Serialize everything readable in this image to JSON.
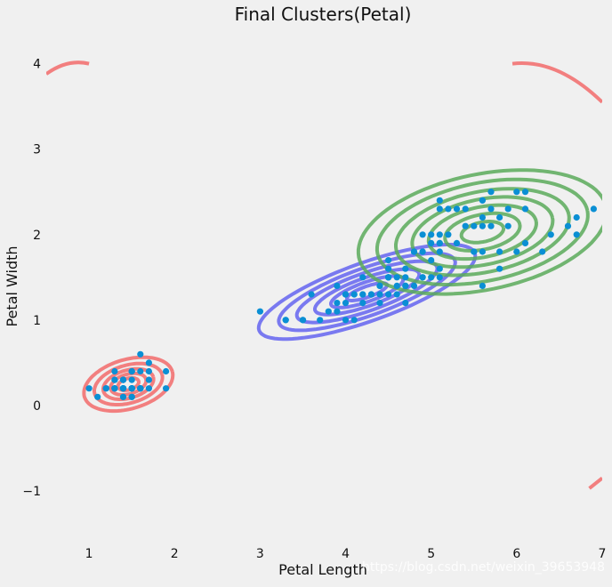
{
  "chart_data": {
    "type": "scatter",
    "title": "Final Clusters(Petal)",
    "xlabel": "Petal Length",
    "ylabel": "Petal Width",
    "xlim": [
      0.5,
      7.0
    ],
    "ylim": [
      -1.5,
      4.35
    ],
    "x_ticks": [
      1,
      2,
      3,
      4,
      5,
      6,
      7
    ],
    "y_ticks": [
      -1,
      0,
      1,
      2,
      3,
      4
    ],
    "grid": false,
    "point_color": "#0a8fd4",
    "points": [
      [
        1.4,
        0.2
      ],
      [
        1.4,
        0.2
      ],
      [
        1.3,
        0.2
      ],
      [
        1.5,
        0.2
      ],
      [
        1.4,
        0.2
      ],
      [
        1.7,
        0.4
      ],
      [
        1.4,
        0.3
      ],
      [
        1.5,
        0.2
      ],
      [
        1.4,
        0.2
      ],
      [
        1.5,
        0.1
      ],
      [
        1.5,
        0.2
      ],
      [
        1.6,
        0.2
      ],
      [
        1.4,
        0.1
      ],
      [
        1.1,
        0.1
      ],
      [
        1.2,
        0.2
      ],
      [
        1.5,
        0.4
      ],
      [
        1.3,
        0.4
      ],
      [
        1.4,
        0.3
      ],
      [
        1.7,
        0.3
      ],
      [
        1.5,
        0.3
      ],
      [
        1.7,
        0.2
      ],
      [
        1.5,
        0.4
      ],
      [
        1.0,
        0.2
      ],
      [
        1.7,
        0.5
      ],
      [
        1.9,
        0.2
      ],
      [
        1.6,
        0.2
      ],
      [
        1.6,
        0.4
      ],
      [
        1.5,
        0.2
      ],
      [
        1.4,
        0.2
      ],
      [
        1.6,
        0.2
      ],
      [
        1.6,
        0.2
      ],
      [
        1.5,
        0.4
      ],
      [
        1.5,
        0.1
      ],
      [
        1.4,
        0.2
      ],
      [
        1.5,
        0.2
      ],
      [
        1.2,
        0.2
      ],
      [
        1.3,
        0.2
      ],
      [
        1.4,
        0.1
      ],
      [
        1.3,
        0.2
      ],
      [
        1.5,
        0.2
      ],
      [
        1.3,
        0.3
      ],
      [
        1.3,
        0.3
      ],
      [
        1.3,
        0.2
      ],
      [
        1.6,
        0.6
      ],
      [
        1.9,
        0.4
      ],
      [
        1.4,
        0.3
      ],
      [
        1.6,
        0.2
      ],
      [
        1.4,
        0.2
      ],
      [
        1.5,
        0.2
      ],
      [
        1.4,
        0.2
      ],
      [
        4.7,
        1.4
      ],
      [
        4.5,
        1.5
      ],
      [
        4.9,
        1.5
      ],
      [
        4.0,
        1.3
      ],
      [
        4.6,
        1.5
      ],
      [
        4.5,
        1.3
      ],
      [
        4.7,
        1.6
      ],
      [
        3.3,
        1.0
      ],
      [
        4.6,
        1.3
      ],
      [
        3.9,
        1.4
      ],
      [
        3.5,
        1.0
      ],
      [
        4.2,
        1.5
      ],
      [
        4.0,
        1.0
      ],
      [
        4.7,
        1.4
      ],
      [
        3.6,
        1.3
      ],
      [
        4.4,
        1.4
      ],
      [
        4.5,
        1.5
      ],
      [
        4.1,
        1.0
      ],
      [
        4.5,
        1.5
      ],
      [
        3.9,
        1.1
      ],
      [
        4.8,
        1.8
      ],
      [
        4.0,
        1.3
      ],
      [
        4.9,
        1.5
      ],
      [
        4.7,
        1.2
      ],
      [
        4.3,
        1.3
      ],
      [
        4.4,
        1.4
      ],
      [
        4.8,
        1.4
      ],
      [
        5.0,
        1.7
      ],
      [
        4.5,
        1.5
      ],
      [
        3.5,
        1.0
      ],
      [
        3.8,
        1.1
      ],
      [
        3.7,
        1.0
      ],
      [
        3.9,
        1.2
      ],
      [
        5.1,
        1.6
      ],
      [
        4.5,
        1.5
      ],
      [
        4.5,
        1.6
      ],
      [
        4.7,
        1.5
      ],
      [
        4.4,
        1.3
      ],
      [
        4.1,
        1.3
      ],
      [
        4.0,
        1.3
      ],
      [
        4.4,
        1.2
      ],
      [
        4.6,
        1.4
      ],
      [
        4.0,
        1.2
      ],
      [
        3.3,
        1.0
      ],
      [
        4.2,
        1.3
      ],
      [
        4.2,
        1.2
      ],
      [
        4.2,
        1.3
      ],
      [
        4.3,
        1.3
      ],
      [
        3.0,
        1.1
      ],
      [
        4.1,
        1.3
      ],
      [
        6.0,
        2.5
      ],
      [
        5.1,
        1.9
      ],
      [
        5.9,
        2.1
      ],
      [
        5.6,
        1.8
      ],
      [
        5.8,
        2.2
      ],
      [
        6.6,
        2.1
      ],
      [
        4.5,
        1.7
      ],
      [
        6.3,
        1.8
      ],
      [
        5.8,
        1.8
      ],
      [
        6.1,
        2.5
      ],
      [
        5.1,
        2.0
      ],
      [
        5.3,
        1.9
      ],
      [
        5.5,
        2.1
      ],
      [
        5.0,
        2.0
      ],
      [
        5.1,
        2.4
      ],
      [
        5.3,
        2.3
      ],
      [
        5.5,
        1.8
      ],
      [
        6.7,
        2.2
      ],
      [
        6.9,
        2.3
      ],
      [
        5.0,
        1.5
      ],
      [
        5.7,
        2.3
      ],
      [
        4.9,
        2.0
      ],
      [
        6.7,
        2.0
      ],
      [
        4.9,
        1.8
      ],
      [
        5.7,
        2.1
      ],
      [
        6.0,
        1.8
      ],
      [
        4.8,
        1.8
      ],
      [
        4.9,
        1.8
      ],
      [
        5.6,
        2.1
      ],
      [
        5.8,
        1.6
      ],
      [
        6.1,
        1.9
      ],
      [
        6.4,
        2.0
      ],
      [
        5.6,
        2.2
      ],
      [
        5.1,
        1.5
      ],
      [
        5.6,
        1.4
      ],
      [
        6.1,
        2.3
      ],
      [
        5.6,
        2.4
      ],
      [
        5.5,
        1.8
      ],
      [
        4.8,
        1.8
      ],
      [
        5.4,
        2.1
      ],
      [
        5.6,
        2.4
      ],
      [
        5.1,
        2.3
      ],
      [
        5.1,
        1.9
      ],
      [
        5.9,
        2.3
      ],
      [
        5.7,
        2.5
      ],
      [
        5.2,
        2.3
      ],
      [
        5.0,
        1.9
      ],
      [
        5.2,
        2.0
      ],
      [
        5.4,
        2.3
      ],
      [
        5.1,
        1.8
      ]
    ],
    "clusters": [
      {
        "color": "#f26b6b",
        "mean": [
          1.46,
          0.25
        ],
        "cov": [
          [
            0.03,
            0.006
          ],
          [
            0.006,
            0.011
          ]
        ],
        "contour_scales": [
          0.7,
          1.2,
          1.7,
          2.3,
          3.0
        ]
      },
      {
        "color": "#6464f0",
        "mean": [
          4.25,
          1.33
        ],
        "cov": [
          [
            0.22,
            0.073
          ],
          [
            0.073,
            0.042
          ]
        ],
        "contour_scales": [
          0.5,
          0.9,
          1.3,
          1.75,
          2.2,
          2.7
        ]
      },
      {
        "color": "#5aaa5a",
        "mean": [
          5.6,
          2.03
        ],
        "cov": [
          [
            0.3,
            0.048
          ],
          [
            0.048,
            0.075
          ]
        ],
        "contour_scales": [
          0.45,
          0.8,
          1.15,
          1.5,
          1.85,
          2.25,
          2.65
        ]
      }
    ]
  },
  "watermark": "https://blog.csdn.net/weixin_39653948"
}
